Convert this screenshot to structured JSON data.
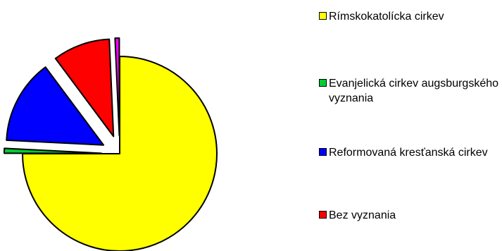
{
  "chart_data": {
    "type": "pie",
    "title": "",
    "legend_position": "right",
    "series": [
      {
        "name": "",
        "slices": [
          {
            "label": "Rímskokatolícka cirkev",
            "value": 75.0,
            "color": "#ffff00"
          },
          {
            "label": "Evanjelická cirkev augsburgského vyznania",
            "value": 0.8,
            "color": "#00cc33"
          },
          {
            "label": "Reformovaná kresťanská cirkev",
            "value": 14.0,
            "color": "#0000ff"
          },
          {
            "label": "Bez vyznania",
            "value": 9.5,
            "color": "#ff0000"
          },
          {
            "label": "",
            "value": 0.7,
            "color": "#ff00ff"
          }
        ]
      }
    ]
  }
}
